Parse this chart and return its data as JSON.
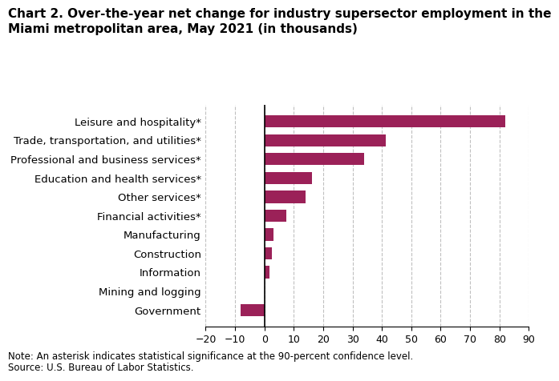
{
  "title_line1": "Chart 2. Over-the-year net change for industry supersector employment in the",
  "title_line2": "Miami metropolitan area, May 2021 (in thousands)",
  "categories": [
    "Government",
    "Mining and logging",
    "Information",
    "Construction",
    "Manufacturing",
    "Financial activities*",
    "Other services*",
    "Education and health services*",
    "Professional and business services*",
    "Trade, transportation, and utilities*",
    "Leisure and hospitality*"
  ],
  "values": [
    -8.0,
    0.0,
    1.7,
    2.5,
    3.1,
    7.5,
    14.0,
    16.3,
    34.0,
    41.2,
    82.0
  ],
  "bar_color": "#9b2158",
  "xlim": [
    -20,
    90
  ],
  "xticks": [
    -20,
    -10,
    0,
    10,
    20,
    30,
    40,
    50,
    60,
    70,
    80,
    90
  ],
  "note": "Note: An asterisk indicates statistical significance at the 90-percent confidence level.",
  "source": "Source: U.S. Bureau of Labor Statistics.",
  "background_color": "#ffffff",
  "grid_color": "#c0c0c0",
  "title_fontsize": 11.0,
  "label_fontsize": 9.5,
  "tick_fontsize": 9.0,
  "note_fontsize": 8.5
}
